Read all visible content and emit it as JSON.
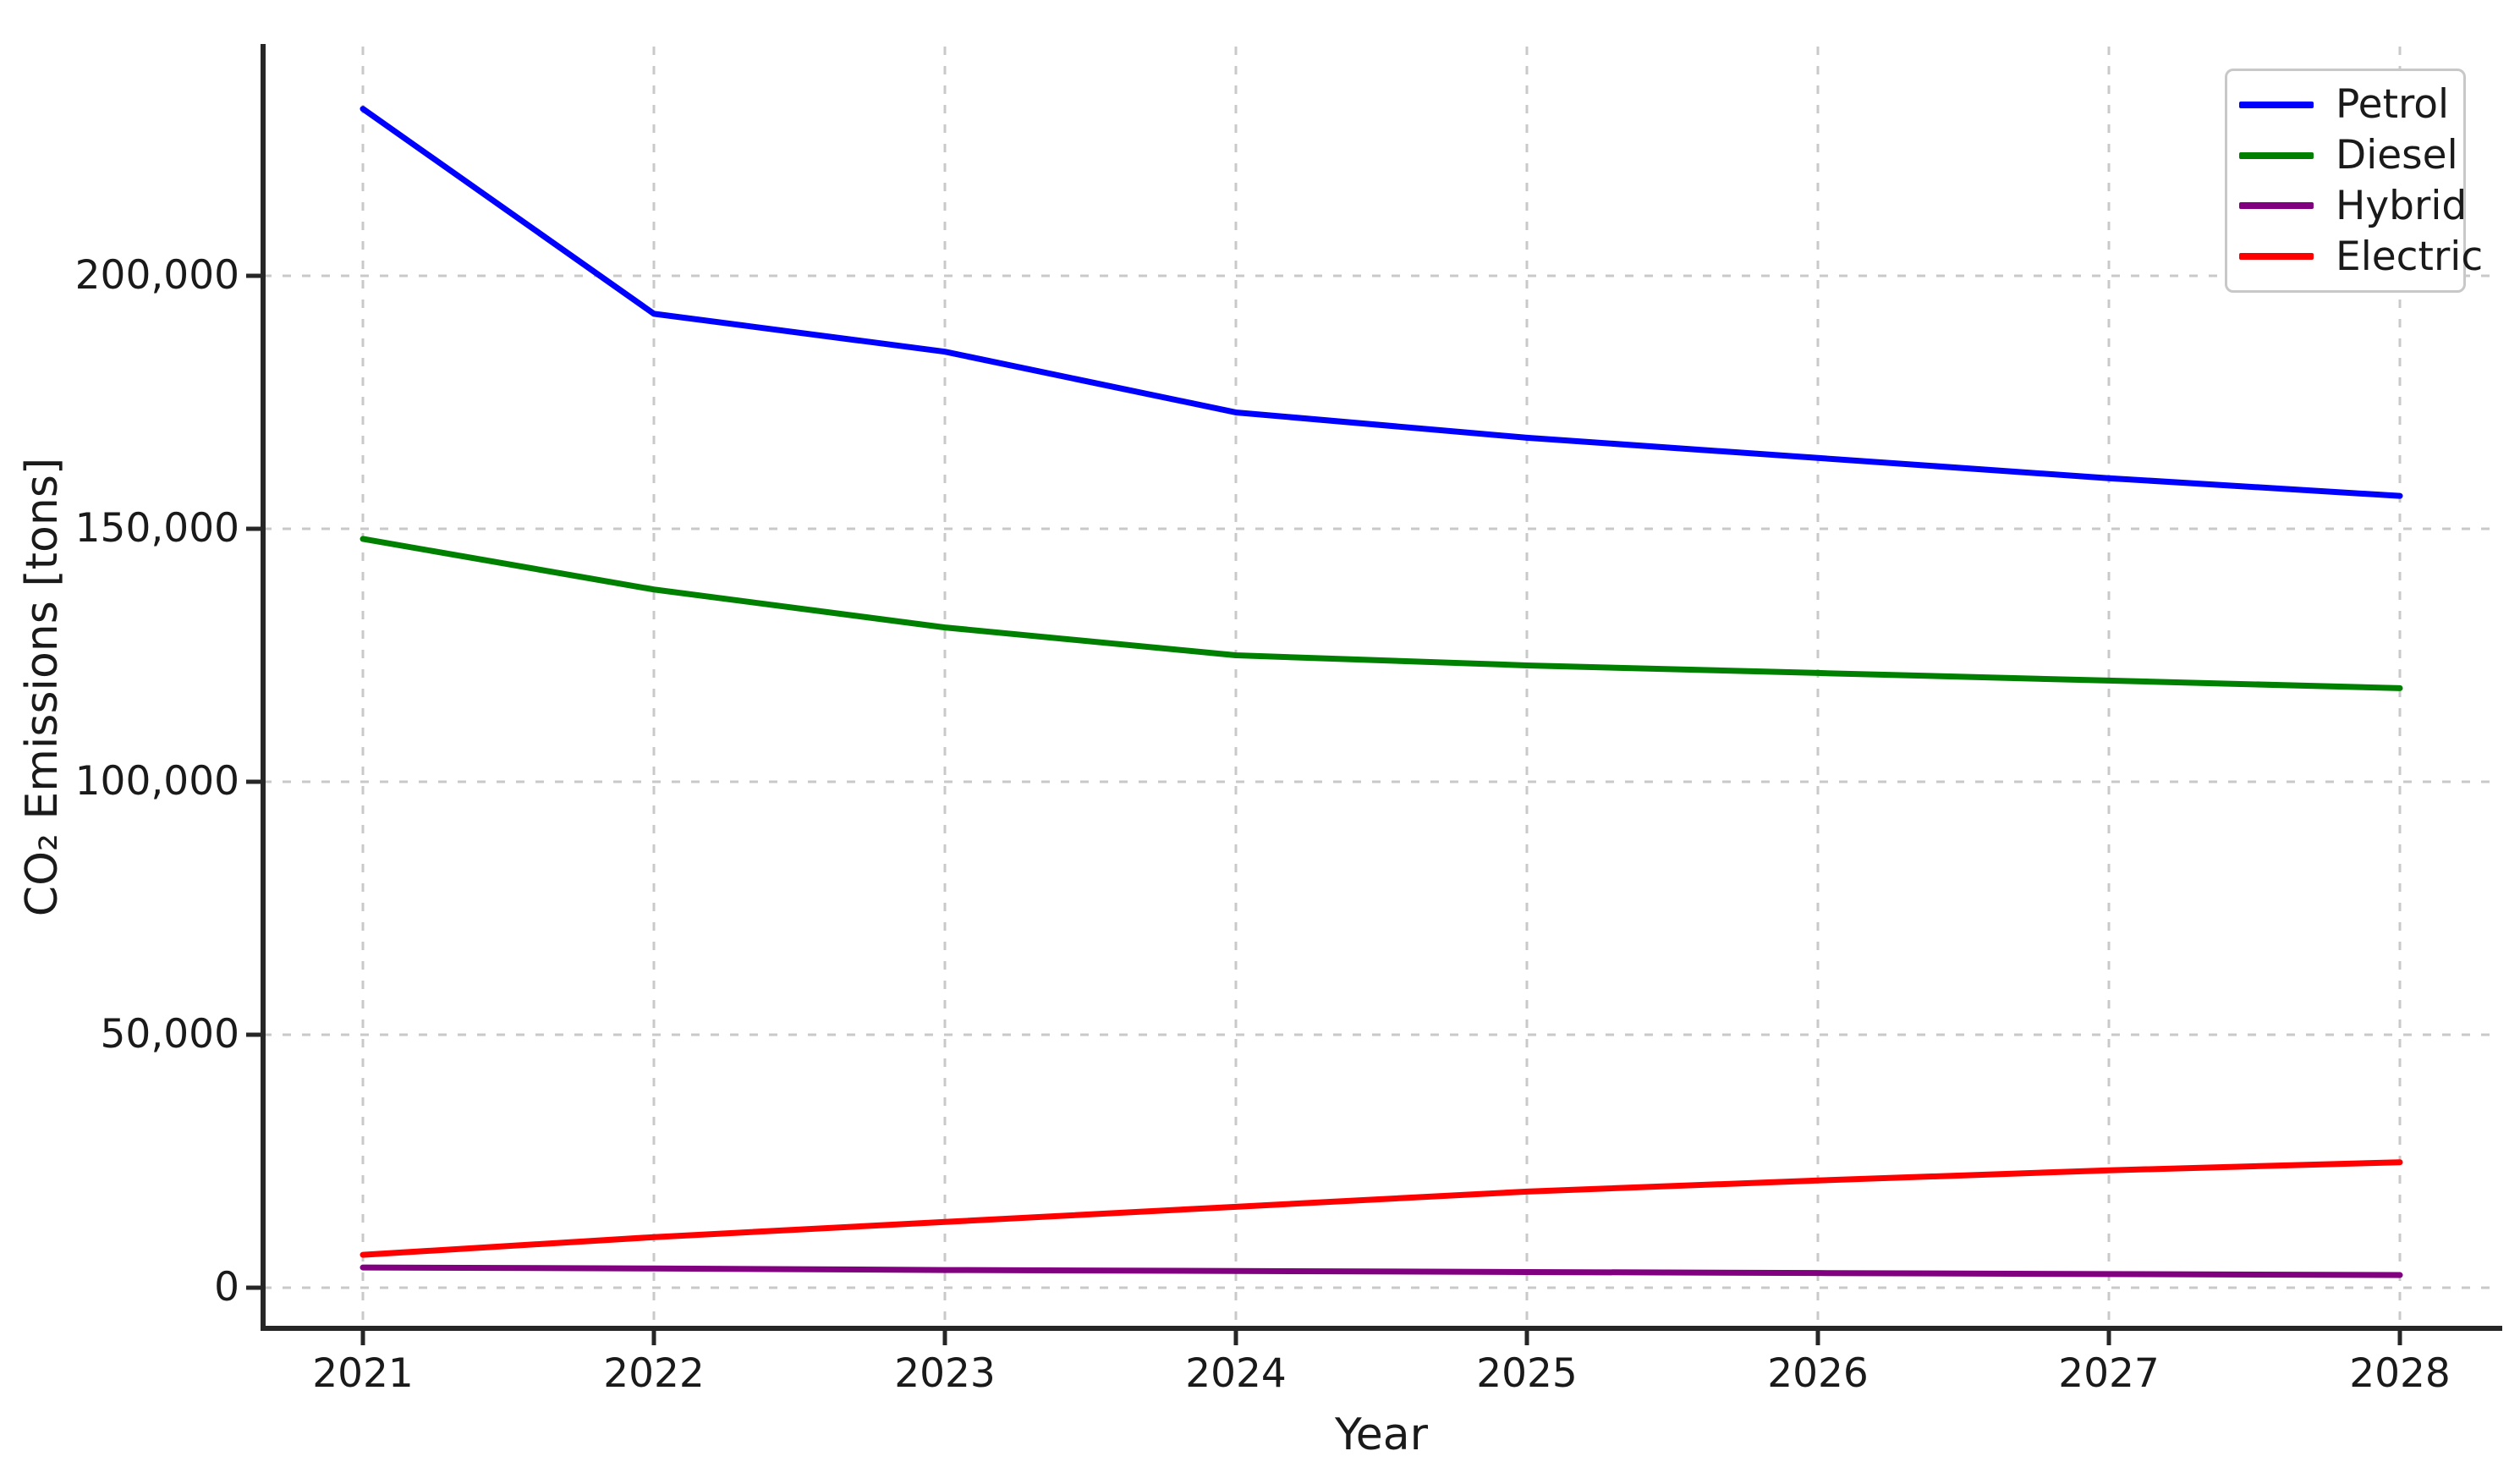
{
  "chart_data": {
    "type": "line",
    "title": "",
    "xlabel": "Year",
    "ylabel": "CO₂ Emissions [tons]",
    "x": [
      2021,
      2022,
      2023,
      2024,
      2025,
      2026,
      2027,
      2028
    ],
    "xtick_labels": [
      "2021",
      "2022",
      "2023",
      "2024",
      "2025",
      "2026",
      "2027",
      "2028"
    ],
    "yticks": [
      0,
      50000,
      100000,
      150000,
      200000
    ],
    "ytick_labels": [
      "0",
      "50,000",
      "100,000",
      "150,000",
      "200,000"
    ],
    "ylim": [
      -8000,
      245000
    ],
    "grid": true,
    "legend_position": "upper right",
    "series": [
      {
        "name": "Petrol",
        "color": "#0000ff",
        "values": [
          233000,
          192500,
          185000,
          173000,
          168000,
          164000,
          160000,
          156500
        ]
      },
      {
        "name": "Diesel",
        "color": "#008000",
        "values": [
          148000,
          138000,
          130500,
          125000,
          123000,
          121500,
          120000,
          118500
        ]
      },
      {
        "name": "Hybrid",
        "color": "#800080",
        "values": [
          4000,
          3800,
          3500,
          3300,
          3100,
          2900,
          2700,
          2500
        ]
      },
      {
        "name": "Electric",
        "color": "#ff0000",
        "values": [
          6500,
          10000,
          13000,
          16000,
          19000,
          21200,
          23200,
          24800
        ]
      }
    ]
  }
}
